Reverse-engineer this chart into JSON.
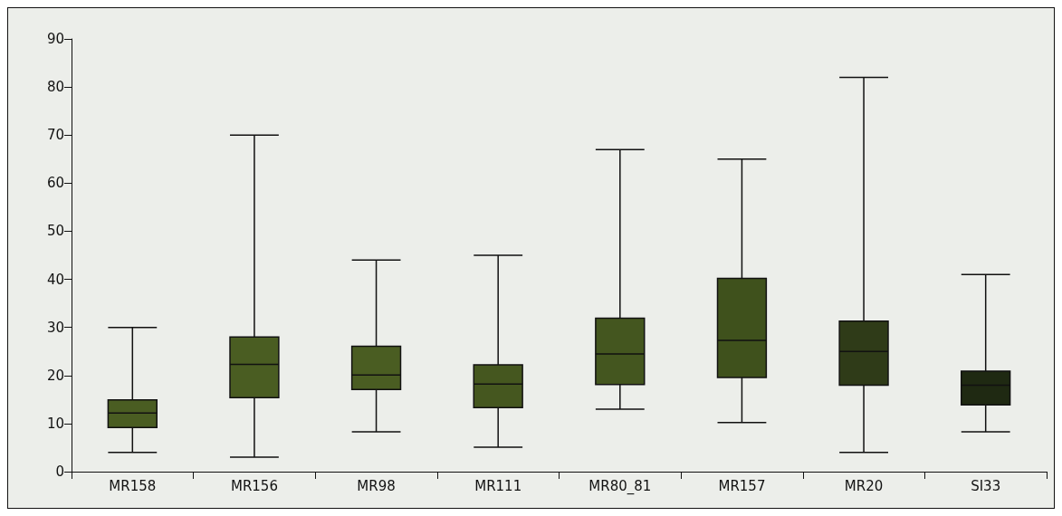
{
  "chart_data": {
    "type": "box",
    "categories": [
      "MR158",
      "MR156",
      "MR98",
      "MR111",
      "MR80_81",
      "MR157",
      "MR20",
      "SI33"
    ],
    "boxes": [
      {
        "low": 4,
        "q1": 9.2,
        "median": 12.2,
        "q3": 14.9,
        "high": 30
      },
      {
        "low": 3,
        "q1": 15.4,
        "median": 22.3,
        "q3": 28,
        "high": 70
      },
      {
        "low": 8.3,
        "q1": 17.1,
        "median": 20.1,
        "q3": 26.1,
        "high": 44
      },
      {
        "low": 5.1,
        "q1": 13.3,
        "median": 18.2,
        "q3": 22.2,
        "high": 45
      },
      {
        "low": 13,
        "q1": 18.1,
        "median": 24.5,
        "q3": 31.9,
        "high": 67
      },
      {
        "low": 10.2,
        "q1": 19.6,
        "median": 27.3,
        "q3": 40.2,
        "high": 65
      },
      {
        "low": 4,
        "q1": 18,
        "median": 25,
        "q3": 31.3,
        "high": 82
      },
      {
        "low": 8.3,
        "q1": 13.9,
        "median": 18,
        "q3": 20.9,
        "high": 41
      }
    ],
    "colors": [
      "#4a5d22",
      "#4a5d22",
      "#4a5d22",
      "#45571f",
      "#44561f",
      "#3f511c",
      "#2f3b18",
      "#1f2912"
    ],
    "ylim": [
      0,
      90
    ],
    "yticks": [
      0,
      10,
      20,
      30,
      40,
      50,
      60,
      70,
      80,
      90
    ],
    "grid": false
  }
}
